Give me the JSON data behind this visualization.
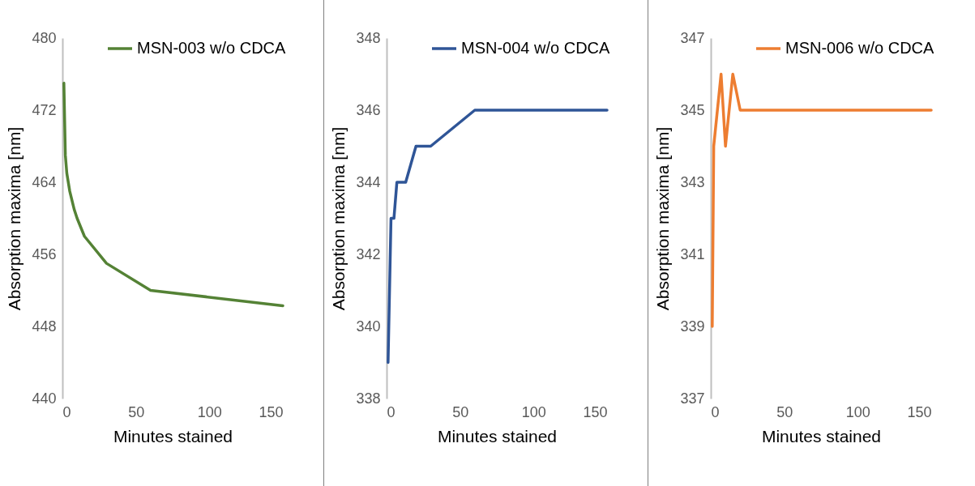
{
  "chart_data": [
    {
      "type": "line",
      "xlabel": "Minutes stained",
      "ylabel": "Absorption maxima [nm]",
      "xlim": [
        0,
        150
      ],
      "xticks": [
        0,
        50,
        100,
        150
      ],
      "ylim": [
        440,
        480
      ],
      "yticks": [
        440,
        448,
        456,
        464,
        472,
        480
      ],
      "legend": "top right",
      "series": [
        {
          "name": "MSN-003 w/o CDCA",
          "color": "#548235",
          "x": [
            1,
            2,
            3,
            5,
            8,
            10,
            15,
            30,
            60,
            150
          ],
          "values": [
            475,
            467,
            465,
            463,
            461,
            460,
            458,
            455,
            452,
            450.3
          ]
        }
      ]
    },
    {
      "type": "line",
      "xlabel": "Minutes stained",
      "ylabel": "Absorption maxima [nm]",
      "xlim": [
        0,
        150
      ],
      "xticks": [
        0,
        50,
        100,
        150
      ],
      "ylim": [
        338,
        348
      ],
      "yticks": [
        338,
        340,
        342,
        344,
        346,
        348
      ],
      "legend": "top right",
      "series": [
        {
          "name": "MSN-004 w/o CDCA",
          "color": "#2f5597",
          "x": [
            1,
            3,
            5,
            7,
            13,
            20,
            30,
            60,
            150
          ],
          "values": [
            339,
            343,
            343,
            344,
            344,
            345,
            345,
            346,
            346
          ]
        }
      ]
    },
    {
      "type": "line",
      "xlabel": "Minutes stained",
      "ylabel": "Absorption maxima [nm]",
      "xlim": [
        0,
        150
      ],
      "xticks": [
        0,
        50,
        100,
        150
      ],
      "ylim": [
        337,
        347
      ],
      "yticks": [
        337,
        339,
        341,
        343,
        345,
        347
      ],
      "legend": "top right",
      "series": [
        {
          "name": "MSN-006 w/o CDCA",
          "color": "#ed7d31",
          "x": [
            1,
            2,
            7,
            10,
            15,
            20,
            150
          ],
          "values": [
            339,
            344,
            346,
            344,
            346,
            345,
            345
          ]
        }
      ]
    }
  ]
}
